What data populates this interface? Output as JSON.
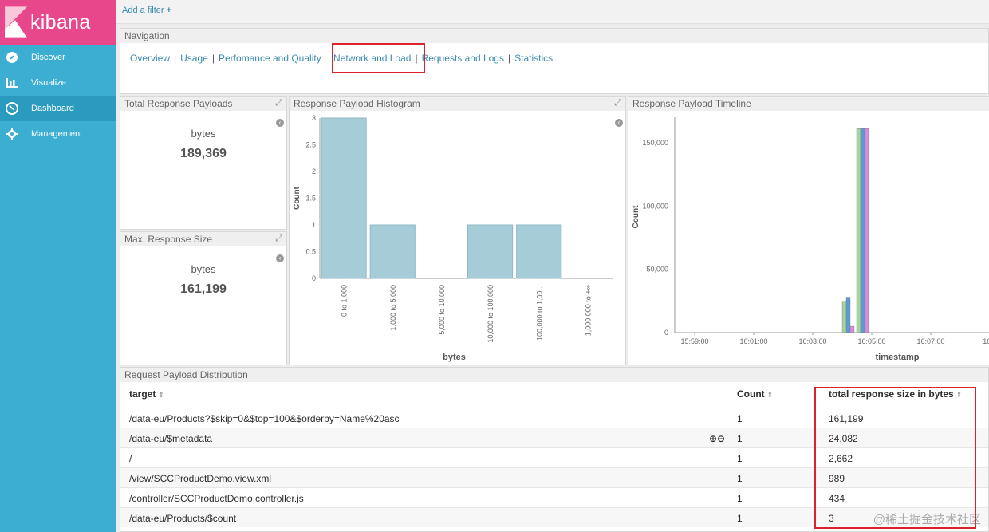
{
  "sidebar": {
    "brand": "kibana",
    "items": [
      {
        "label": "Discover",
        "icon": "compass-icon"
      },
      {
        "label": "Visualize",
        "icon": "bar-chart-icon"
      },
      {
        "label": "Dashboard",
        "icon": "dashboard-icon",
        "active": true
      },
      {
        "label": "Management",
        "icon": "gear-icon"
      }
    ]
  },
  "filter": {
    "add_label": "Add a filter",
    "plus": "+"
  },
  "navigation_panel": {
    "title": "Navigation",
    "links": [
      "Overview",
      "Usage",
      "Perfomance and Quality",
      "Network and Load",
      "Requests and Logs",
      "Statistics"
    ],
    "separator": "|"
  },
  "metrics": [
    {
      "title": "Total Response Payloads",
      "label": "bytes",
      "value": "189,369"
    },
    {
      "title": "Max. Response Size",
      "label": "bytes",
      "value": "161,199"
    }
  ],
  "histogram": {
    "title": "Response Payload Histogram",
    "chart_data": {
      "type": "bar",
      "categories": [
        "0 to 1,000",
        "1,000 to 5,000",
        "5,000 to 10,000",
        "10,000 to 100,000",
        "100,000 to 1,00...",
        "1,000,000 to +∞"
      ],
      "values": [
        3,
        1,
        0,
        1,
        1,
        0
      ],
      "xlabel": "bytes",
      "ylabel": "Count",
      "ylim": [
        0,
        3
      ],
      "yticks": [
        "0",
        "0.5",
        "1",
        "1.5",
        "2",
        "2.5",
        "3"
      ],
      "color": "#a6ccd8"
    }
  },
  "timeline": {
    "title": "Response Payload Timeline",
    "chart_data": {
      "type": "bar",
      "xlabel": "timestamp",
      "ylabel": "Count",
      "ylim": [
        0,
        160000
      ],
      "yticks": [
        "0",
        "50,000",
        "100,000",
        "150,000"
      ],
      "xticks": [
        "15:59:00",
        "16:01:00",
        "16:03:00",
        "16:05:00",
        "16:07:00",
        "16:0"
      ],
      "series": [
        {
          "x": "16:04:5x",
          "value": 24082,
          "color": "#a6d49b"
        },
        {
          "x": "16:04:5x",
          "value": 28000,
          "color": "#5b9bd5"
        },
        {
          "x": "16:04:5x",
          "value": 5000,
          "color": "#d98be0"
        },
        {
          "x": "16:05:00",
          "value": 161199,
          "color": "#a6d49b"
        },
        {
          "x": "16:05:00",
          "value": 161199,
          "color": "#5b9bd5"
        },
        {
          "x": "16:05:00",
          "value": 161199,
          "color": "#d98be0"
        }
      ]
    }
  },
  "distribution": {
    "title": "Request Payload Distribution",
    "columns": [
      "target",
      "Count",
      "total response size in bytes"
    ],
    "sort_icon": "⇕",
    "zoom_icons": "⊕⊖",
    "rows": [
      {
        "target": "/data-eu/Products?$skip=0&$top=100&$orderby=Name%20asc",
        "count": "1",
        "size": "161,199"
      },
      {
        "target": "/data-eu/$metadata",
        "count": "1",
        "size": "24,082"
      },
      {
        "target": "/",
        "count": "1",
        "size": "2,662"
      },
      {
        "target": "/view/SCCProductDemo.view.xml",
        "count": "1",
        "size": "989"
      },
      {
        "target": "/controller/SCCProductDemo.controller.js",
        "count": "1",
        "size": "434"
      },
      {
        "target": "/data-eu/Products/$count",
        "count": "1",
        "size": "3"
      }
    ]
  },
  "watermark": "@稀土掘金技术社区"
}
